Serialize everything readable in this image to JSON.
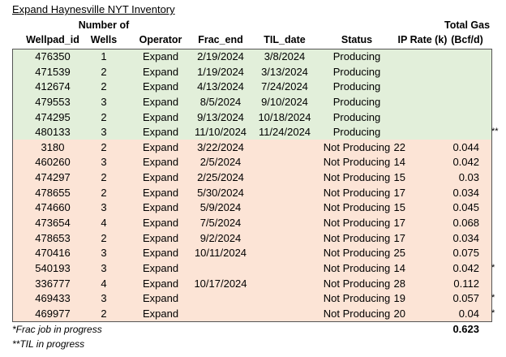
{
  "title": "Expand Haynesville NYT Inventory",
  "headers": {
    "wellpad_id": "Wellpad_id",
    "number_of_line1": "Number of",
    "wells_line2": "Wells",
    "operator": "Operator",
    "frac_end": "Frac_end",
    "til_date": "TIL_date",
    "status": "Status",
    "ip_rate": "IP Rate (k)",
    "total_gas_line1": "Total Gas",
    "total_gas_line2": "(Bcf/d)"
  },
  "band_colors": {
    "producing": "#e2efda",
    "not_producing": "#fce4d6"
  },
  "rows": [
    {
      "id": "476350",
      "wells": "1",
      "operator": "Expand",
      "frac_end": "2/19/2024",
      "til": "3/8/2024",
      "status": "Producing",
      "ip": "",
      "gas": "",
      "note": ""
    },
    {
      "id": "471539",
      "wells": "2",
      "operator": "Expand",
      "frac_end": "1/19/2024",
      "til": "3/13/2024",
      "status": "Producing",
      "ip": "",
      "gas": "",
      "note": ""
    },
    {
      "id": "412674",
      "wells": "2",
      "operator": "Expand",
      "frac_end": "4/13/2024",
      "til": "7/24/2024",
      "status": "Producing",
      "ip": "",
      "gas": "",
      "note": ""
    },
    {
      "id": "479553",
      "wells": "3",
      "operator": "Expand",
      "frac_end": "8/5/2024",
      "til": "9/10/2024",
      "status": "Producing",
      "ip": "",
      "gas": "",
      "note": ""
    },
    {
      "id": "474295",
      "wells": "2",
      "operator": "Expand",
      "frac_end": "9/13/2024",
      "til": "10/18/2024",
      "status": "Producing",
      "ip": "",
      "gas": "",
      "note": ""
    },
    {
      "id": "480133",
      "wells": "3",
      "operator": "Expand",
      "frac_end": "11/10/2024",
      "til": "11/24/2024",
      "status": "Producing",
      "ip": "",
      "gas": "",
      "note": "**"
    },
    {
      "id": "3180",
      "wells": "2",
      "operator": "Expand",
      "frac_end": "3/22/2024",
      "til": "",
      "status": "Not Producing",
      "ip": "22",
      "gas": "0.044",
      "note": ""
    },
    {
      "id": "460260",
      "wells": "3",
      "operator": "Expand",
      "frac_end": "2/5/2024",
      "til": "",
      "status": "Not Producing",
      "ip": "14",
      "gas": "0.042",
      "note": ""
    },
    {
      "id": "474297",
      "wells": "2",
      "operator": "Expand",
      "frac_end": "2/25/2024",
      "til": "",
      "status": "Not Producing",
      "ip": "15",
      "gas": "0.03",
      "note": ""
    },
    {
      "id": "478655",
      "wells": "2",
      "operator": "Expand",
      "frac_end": "5/30/2024",
      "til": "",
      "status": "Not Producing",
      "ip": "17",
      "gas": "0.034",
      "note": ""
    },
    {
      "id": "474660",
      "wells": "3",
      "operator": "Expand",
      "frac_end": "5/9/2024",
      "til": "",
      "status": "Not Producing",
      "ip": "15",
      "gas": "0.045",
      "note": ""
    },
    {
      "id": "473654",
      "wells": "4",
      "operator": "Expand",
      "frac_end": "7/5/2024",
      "til": "",
      "status": "Not Producing",
      "ip": "17",
      "gas": "0.068",
      "note": ""
    },
    {
      "id": "478653",
      "wells": "2",
      "operator": "Expand",
      "frac_end": "9/2/2024",
      "til": "",
      "status": "Not Producing",
      "ip": "17",
      "gas": "0.034",
      "note": ""
    },
    {
      "id": "470416",
      "wells": "3",
      "operator": "Expand",
      "frac_end": "10/11/2024",
      "til": "",
      "status": "Not Producing",
      "ip": "25",
      "gas": "0.075",
      "note": ""
    },
    {
      "id": "540193",
      "wells": "3",
      "operator": "Expand",
      "frac_end": "",
      "til": "",
      "status": "Not Producing",
      "ip": "14",
      "gas": "0.042",
      "note": "*"
    },
    {
      "id": "336777",
      "wells": "4",
      "operator": "Expand",
      "frac_end": "10/17/2024",
      "til": "",
      "status": "Not Producing",
      "ip": "28",
      "gas": "0.112",
      "note": ""
    },
    {
      "id": "469433",
      "wells": "3",
      "operator": "Expand",
      "frac_end": "",
      "til": "",
      "status": "Not Producing",
      "ip": "19",
      "gas": "0.057",
      "note": "*"
    },
    {
      "id": "469977",
      "wells": "2",
      "operator": "Expand",
      "frac_end": "",
      "til": "",
      "status": "Not Producing",
      "ip": "20",
      "gas": "0.04",
      "note": "*"
    }
  ],
  "total_gas": "0.623",
  "footnotes": [
    "*Frac job in progress",
    "**TIL in progress"
  ]
}
